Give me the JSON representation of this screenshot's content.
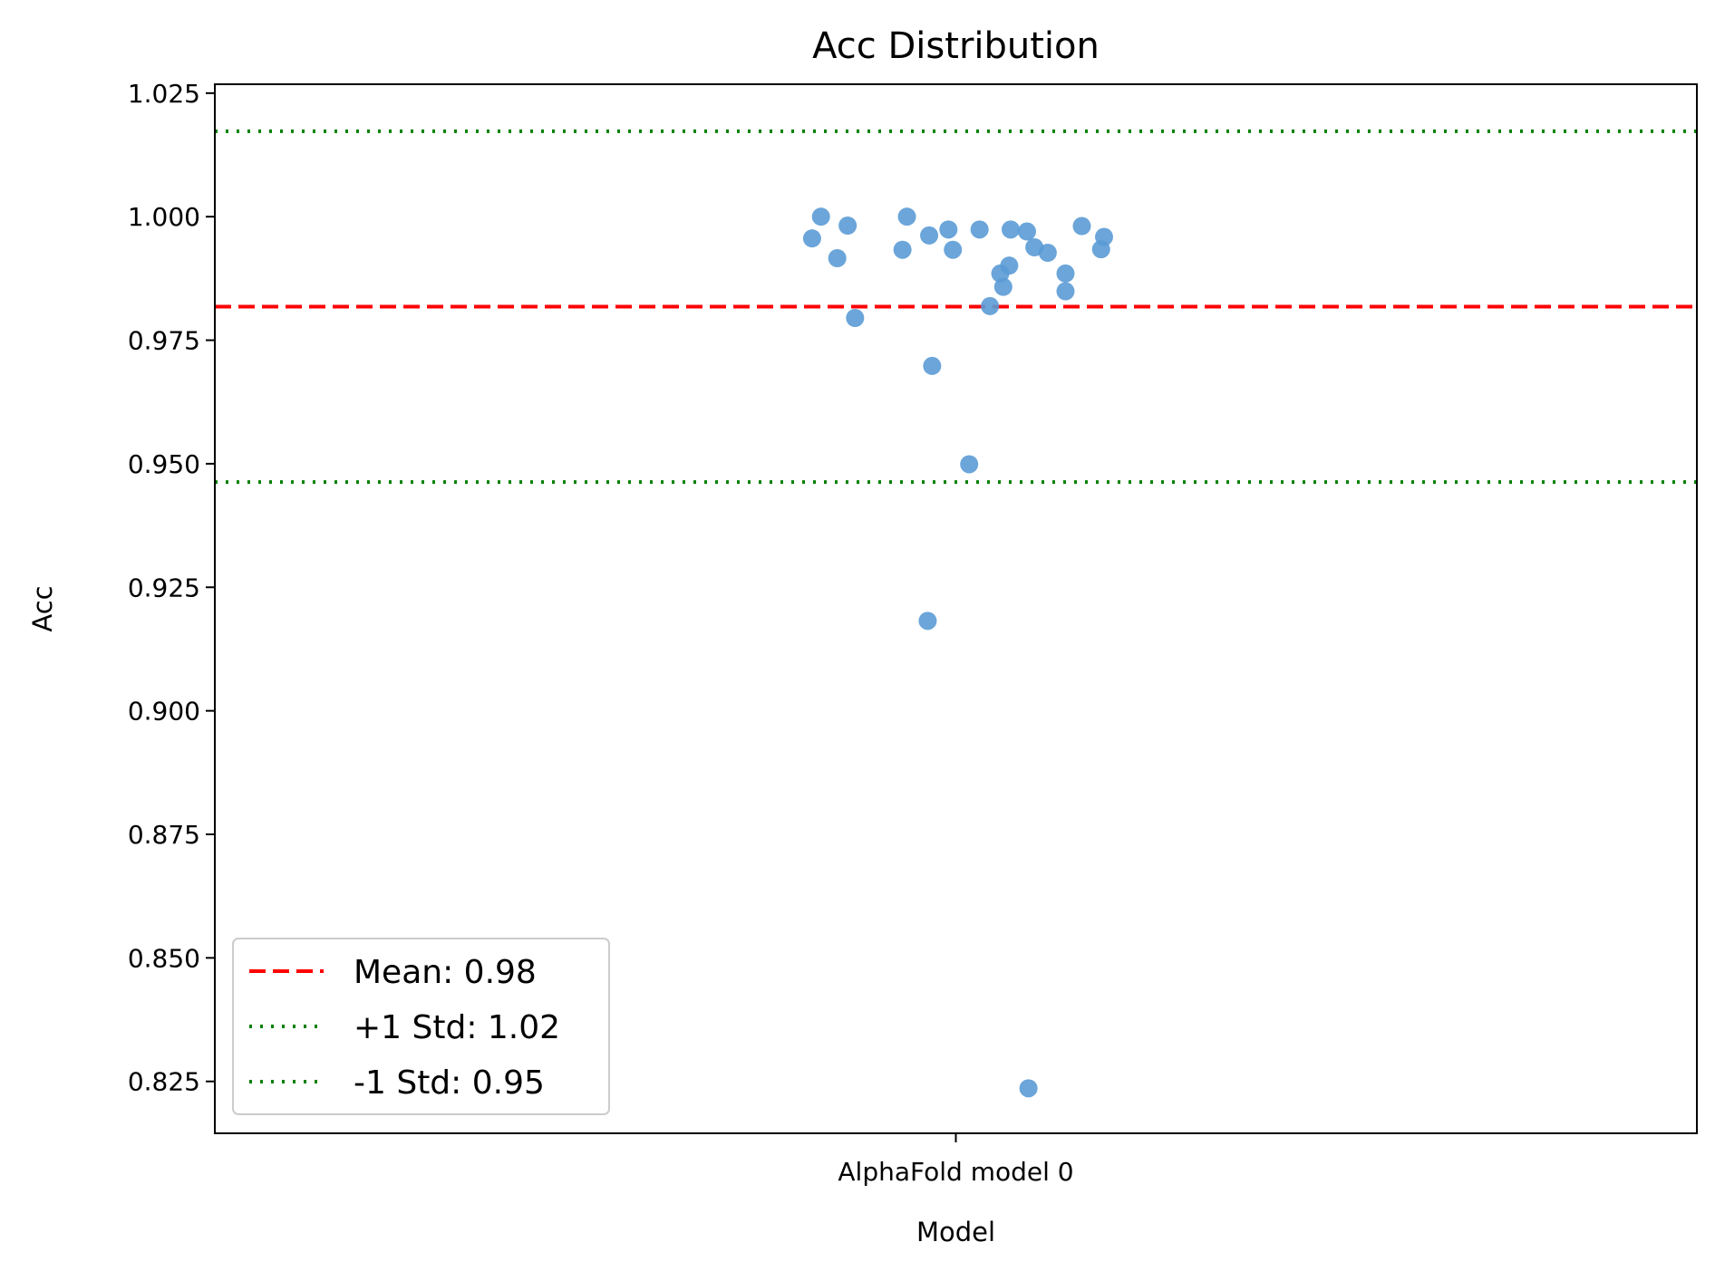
{
  "chart_data": {
    "type": "scatter",
    "title": "Acc Distribution",
    "xlabel": "Model",
    "ylabel": "Acc",
    "categories": [
      "AlphaFold model 0"
    ],
    "ylim": [
      0.8145,
      1.0268
    ],
    "yticks": [
      "0.825",
      "0.850",
      "0.875",
      "0.900",
      "0.925",
      "0.950",
      "0.975",
      "1.000",
      "1.025"
    ],
    "grid": false,
    "legend_position": "lower-left",
    "series": [
      {
        "category": "AlphaFold model 0",
        "color": "#5b9bd5",
        "points": [
          {
            "jitter": -0.097,
            "y": 0.9956
          },
          {
            "jitter": -0.091,
            "y": 1.0
          },
          {
            "jitter": -0.08,
            "y": 0.9916
          },
          {
            "jitter": -0.073,
            "y": 0.9982
          },
          {
            "jitter": -0.068,
            "y": 0.9795
          },
          {
            "jitter": -0.036,
            "y": 0.9933
          },
          {
            "jitter": -0.033,
            "y": 1.0
          },
          {
            "jitter": -0.019,
            "y": 0.9182
          },
          {
            "jitter": -0.018,
            "y": 0.9962
          },
          {
            "jitter": -0.016,
            "y": 0.9698
          },
          {
            "jitter": -0.005,
            "y": 0.9974
          },
          {
            "jitter": -0.002,
            "y": 0.9933
          },
          {
            "jitter": 0.009,
            "y": 0.9499
          },
          {
            "jitter": 0.016,
            "y": 0.9974
          },
          {
            "jitter": 0.023,
            "y": 0.9819
          },
          {
            "jitter": 0.03,
            "y": 0.9885
          },
          {
            "jitter": 0.032,
            "y": 0.9858
          },
          {
            "jitter": 0.036,
            "y": 0.9901
          },
          {
            "jitter": 0.037,
            "y": 0.9974
          },
          {
            "jitter": 0.048,
            "y": 0.997
          },
          {
            "jitter": 0.049,
            "y": 0.8236
          },
          {
            "jitter": 0.053,
            "y": 0.9938
          },
          {
            "jitter": 0.062,
            "y": 0.9927
          },
          {
            "jitter": 0.074,
            "y": 0.9885
          },
          {
            "jitter": 0.074,
            "y": 0.9849
          },
          {
            "jitter": 0.085,
            "y": 0.9981
          },
          {
            "jitter": 0.098,
            "y": 0.9934
          },
          {
            "jitter": 0.1,
            "y": 0.9959
          }
        ]
      }
    ],
    "reference_lines": [
      {
        "label": "Mean: 0.98",
        "value": 0.9818,
        "color": "#ff0000",
        "style": "dashed"
      },
      {
        "label": "+1 Std: 1.02",
        "value": 1.0173,
        "color": "#008000",
        "style": "dotted"
      },
      {
        "label": "-1 Std: 0.95",
        "value": 0.9463,
        "color": "#008000",
        "style": "dotted"
      }
    ]
  }
}
